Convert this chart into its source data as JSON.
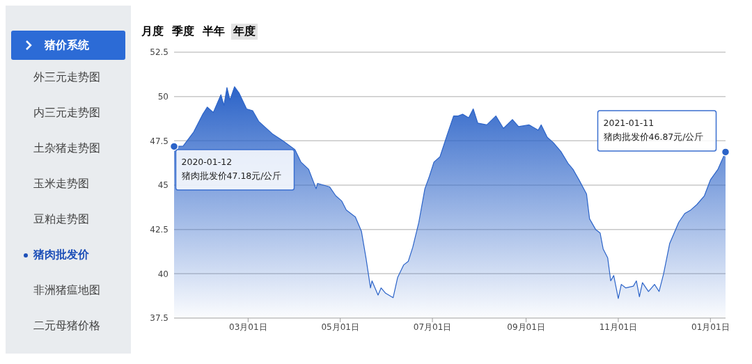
{
  "chart_data": {
    "type": "area",
    "x": [
      "2020-01-12",
      "2020-01-18",
      "2020-01-25",
      "2020-01-31",
      "2020-02-03",
      "2020-02-07",
      "2020-02-12",
      "2020-02-14",
      "2020-02-16",
      "2020-02-18",
      "2020-02-21",
      "2020-02-24",
      "2020-02-29",
      "2020-03-04",
      "2020-03-08",
      "2020-03-17",
      "2020-03-24",
      "2020-04-01",
      "2020-04-05",
      "2020-04-10",
      "2020-04-15",
      "2020-04-16",
      "2020-04-24",
      "2020-04-28",
      "2020-05-02",
      "2020-05-05",
      "2020-05-11",
      "2020-05-15",
      "2020-05-18",
      "2020-05-21",
      "2020-05-22",
      "2020-05-26",
      "2020-05-28",
      "2020-05-31",
      "2020-06-05",
      "2020-06-08",
      "2020-06-12",
      "2020-06-15",
      "2020-06-18",
      "2020-06-22",
      "2020-06-26",
      "2020-06-29",
      "2020-07-02",
      "2020-07-06",
      "2020-07-11",
      "2020-07-15",
      "2020-07-18",
      "2020-07-21",
      "2020-07-25",
      "2020-07-28",
      "2020-07-31",
      "2020-08-06",
      "2020-08-12",
      "2020-08-17",
      "2020-08-23",
      "2020-08-27",
      "2020-09-03",
      "2020-09-09",
      "2020-09-11",
      "2020-09-15",
      "2020-09-19",
      "2020-09-24",
      "2020-09-29",
      "2020-10-02",
      "2020-10-06",
      "2020-10-11",
      "2020-10-13",
      "2020-10-17",
      "2020-10-20",
      "2020-10-22",
      "2020-10-25",
      "2020-10-27",
      "2020-10-29",
      "2020-11-01",
      "2020-11-03",
      "2020-11-06",
      "2020-11-11",
      "2020-11-13",
      "2020-11-15",
      "2020-11-17",
      "2020-11-21",
      "2020-11-25",
      "2020-11-28",
      "2020-12-01",
      "2020-12-05",
      "2020-12-11",
      "2020-12-15",
      "2020-12-19",
      "2020-12-23",
      "2020-12-28",
      "2021-01-01",
      "2021-01-06",
      "2021-01-11"
    ],
    "series": [
      {
        "color": "#2b63c8",
        "values": [
          47.18,
          47.2,
          48.0,
          49.0,
          49.4,
          49.1,
          50.1,
          49.5,
          50.5,
          49.8,
          50.55,
          50.2,
          49.3,
          49.2,
          48.6,
          47.9,
          47.5,
          47.0,
          46.3,
          45.9,
          44.8,
          45.1,
          44.9,
          44.4,
          44.1,
          43.6,
          43.2,
          42.4,
          40.9,
          39.2,
          39.6,
          38.8,
          39.2,
          38.9,
          38.65,
          39.8,
          40.5,
          40.7,
          41.5,
          42.9,
          44.8,
          45.5,
          46.3,
          46.6,
          47.9,
          48.9,
          48.9,
          49.0,
          48.8,
          49.3,
          48.5,
          48.4,
          48.9,
          48.2,
          48.7,
          48.3,
          48.4,
          48.1,
          48.4,
          47.7,
          47.4,
          46.9,
          46.2,
          45.9,
          45.3,
          44.5,
          43.1,
          42.5,
          42.3,
          41.4,
          40.9,
          39.6,
          39.9,
          38.6,
          39.4,
          39.2,
          39.3,
          39.6,
          38.7,
          39.5,
          39.0,
          39.4,
          39.0,
          40.0,
          41.7,
          42.9,
          43.4,
          43.6,
          43.9,
          44.4,
          45.3,
          45.9,
          46.87
        ]
      }
    ],
    "xlim": [
      "2020-01-12",
      "2021-01-11"
    ],
    "xticks": [
      {
        "value": "2020-03-01",
        "label": "03月01日"
      },
      {
        "value": "2020-05-01",
        "label": "05月01日"
      },
      {
        "value": "2020-07-01",
        "label": "07月01日"
      },
      {
        "value": "2020-09-01",
        "label": "09月01日"
      },
      {
        "value": "2020-11-01",
        "label": "11月01日"
      },
      {
        "value": "2021-01-01",
        "label": "01月01日"
      }
    ],
    "ylim": [
      37.5,
      52.5
    ],
    "yticks": [
      37.5,
      40,
      42.5,
      45,
      47.5,
      50,
      52.5
    ],
    "grid": "y",
    "annotations": [
      "月度",
      "季度",
      "半年",
      "年度",
      "猪价系统",
      "外三元走势图",
      "内三元走势图",
      "土杂猪走势图",
      "玉米走势图",
      "豆粕走势图",
      "猪肉批发价",
      "非洲猪瘟地图",
      "二元母猪价格",
      {
        "text": "2020-01-12\n猪肉批发价47.18元/公斤",
        "x": "2020-01-12",
        "y": 47.18
      },
      {
        "text": "2021-01-11\n猪肉批发价46.87元/公斤",
        "x": "2021-01-11",
        "y": 46.87
      }
    ]
  }
}
